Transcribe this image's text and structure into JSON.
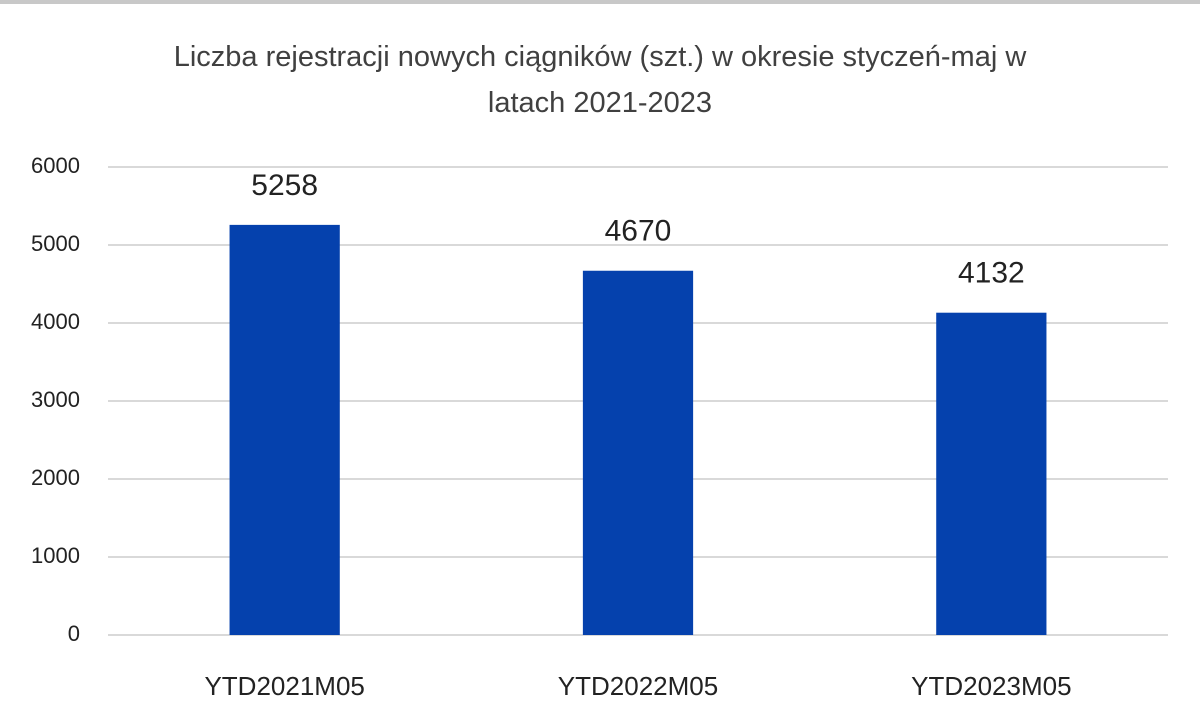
{
  "chart_data": {
    "type": "bar",
    "title": "Liczba rejestracji nowych ciągników (szt.) w okresie styczeń-maj w latach 2021-2023",
    "categories": [
      "YTD2021M05",
      "YTD2022M05",
      "YTD2023M05"
    ],
    "values": [
      5258,
      4670,
      4132
    ],
    "color": "#0541ad",
    "ylim": [
      0,
      6000
    ],
    "yticks": [
      0,
      1000,
      2000,
      3000,
      4000,
      5000,
      6000
    ],
    "grid": true
  }
}
